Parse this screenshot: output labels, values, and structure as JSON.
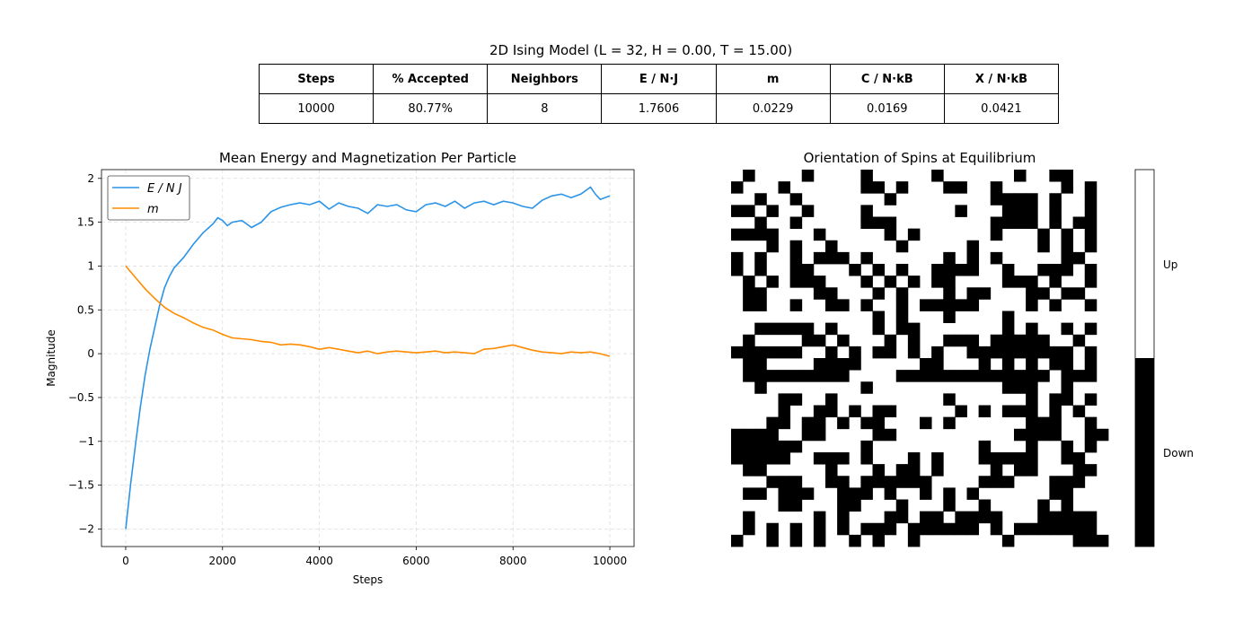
{
  "figure_title": "2D Ising Model (L = 32, H = 0.00, T = 15.00)",
  "table": {
    "headers": [
      "Steps",
      "% Accepted",
      "Neighbors",
      "E / N·J",
      "m",
      "C / N·kB",
      "X / N·kB"
    ],
    "values": [
      "10000",
      "80.77%",
      "8",
      "1.7606",
      "0.0229",
      "0.0169",
      "0.0421"
    ]
  },
  "chart_data": [
    {
      "type": "line",
      "title": "Mean Energy and Magnetization Per Particle",
      "xlabel": "Steps",
      "ylabel": "Magnitude",
      "xlim": [
        -500,
        10500
      ],
      "ylim": [
        -2.2,
        2.1
      ],
      "xticks": [
        0,
        2000,
        4000,
        6000,
        8000,
        10000
      ],
      "yticks": [
        -2.0,
        -1.5,
        -1.0,
        -0.5,
        0.0,
        0.5,
        1.0,
        1.5,
        2.0
      ],
      "grid": true,
      "legend": "top-left",
      "series": [
        {
          "name": "E / N J",
          "color": "#2b94e8",
          "x": [
            0,
            100,
            200,
            300,
            400,
            500,
            600,
            700,
            800,
            900,
            1000,
            1200,
            1400,
            1600,
            1800,
            1900,
            2000,
            2100,
            2200,
            2400,
            2600,
            2700,
            2800,
            3000,
            3200,
            3400,
            3600,
            3800,
            4000,
            4200,
            4400,
            4600,
            4800,
            5000,
            5200,
            5400,
            5600,
            5800,
            6000,
            6200,
            6400,
            6600,
            6800,
            7000,
            7200,
            7400,
            7600,
            7800,
            8000,
            8200,
            8400,
            8600,
            8800,
            9000,
            9200,
            9400,
            9600,
            9700,
            9800,
            10000
          ],
          "y": [
            -2.0,
            -1.5,
            -1.05,
            -0.62,
            -0.25,
            0.05,
            0.3,
            0.55,
            0.75,
            0.88,
            0.98,
            1.1,
            1.25,
            1.38,
            1.48,
            1.55,
            1.52,
            1.46,
            1.5,
            1.52,
            1.44,
            1.47,
            1.5,
            1.62,
            1.67,
            1.7,
            1.72,
            1.7,
            1.74,
            1.65,
            1.72,
            1.68,
            1.66,
            1.6,
            1.7,
            1.68,
            1.7,
            1.64,
            1.62,
            1.7,
            1.72,
            1.68,
            1.74,
            1.66,
            1.72,
            1.74,
            1.7,
            1.74,
            1.72,
            1.68,
            1.66,
            1.75,
            1.8,
            1.82,
            1.78,
            1.82,
            1.9,
            1.82,
            1.76,
            1.8
          ]
        },
        {
          "name": "m",
          "color": "#ff8c00",
          "x": [
            0,
            200,
            400,
            600,
            800,
            1000,
            1200,
            1400,
            1600,
            1800,
            2000,
            2200,
            2400,
            2600,
            2800,
            3000,
            3200,
            3400,
            3600,
            3800,
            4000,
            4200,
            4400,
            4600,
            4800,
            5000,
            5200,
            5400,
            5600,
            5800,
            6000,
            6200,
            6400,
            6600,
            6800,
            7000,
            7200,
            7400,
            7600,
            7800,
            8000,
            8200,
            8400,
            8600,
            8800,
            9000,
            9200,
            9400,
            9600,
            9800,
            10000
          ],
          "y": [
            1.0,
            0.87,
            0.74,
            0.63,
            0.53,
            0.46,
            0.41,
            0.35,
            0.3,
            0.27,
            0.22,
            0.18,
            0.17,
            0.16,
            0.14,
            0.13,
            0.1,
            0.11,
            0.1,
            0.08,
            0.05,
            0.07,
            0.05,
            0.03,
            0.01,
            0.03,
            0.0,
            0.02,
            0.03,
            0.02,
            0.01,
            0.02,
            0.03,
            0.01,
            0.02,
            0.01,
            0.0,
            0.05,
            0.06,
            0.08,
            0.1,
            0.07,
            0.04,
            0.02,
            0.01,
            0.0,
            0.02,
            0.01,
            0.02,
            0.0,
            -0.03
          ]
        }
      ]
    },
    {
      "type": "heatmap",
      "title": "Orientation of Spins at Equilibrium",
      "size": 32,
      "colorbar_labels": [
        "Up",
        "Down"
      ],
      "colors": {
        "up": "#ffffff",
        "down": "#000000"
      },
      "grid_rows": [
        "10111101111011111011111101100111",
        "01110111111001011100110111110101",
        "11011011111110111111110000101101",
        "00101101111011111110111000101101",
        "11011011111000111111110000101001",
        "00001110111110101111110111010101",
        "11101011011111011111011111010101",
        "01011010001011111101010111110011",
        "01011001110101011000011011000101",
        "10101000111010101001111000101101",
        "10011110011101011101001110010011",
        "10011011001011010000011110101101",
        "11111111111101011101111011111111",
        "11000001011101001111111010110101",
        "10111100101110101100010000011011",
        "00000011010100101011000000000101",
        "10011110000111110011101010100101",
        "10000000001111000000000000010001",
        "11011111111011111111111000110111",
        "11110011011111111101111110100101",
        "11110110010100111110101000101011",
        "11100100101001110101111110001101",
        "00001100111100111111111100001100",
        "00000011111011111111101110110101",
        "00000110001011101011100000110011",
        "10011111011101001011110100111001",
        "11100011001000000111100011100011",
        "10010001100010110101011111100111",
        "11110011100111011101101111010111",
        "10111110101110010010000111000001",
        "10101010101000100000010100000001",
        "01101010110101101111111011111000"
      ]
    }
  ]
}
